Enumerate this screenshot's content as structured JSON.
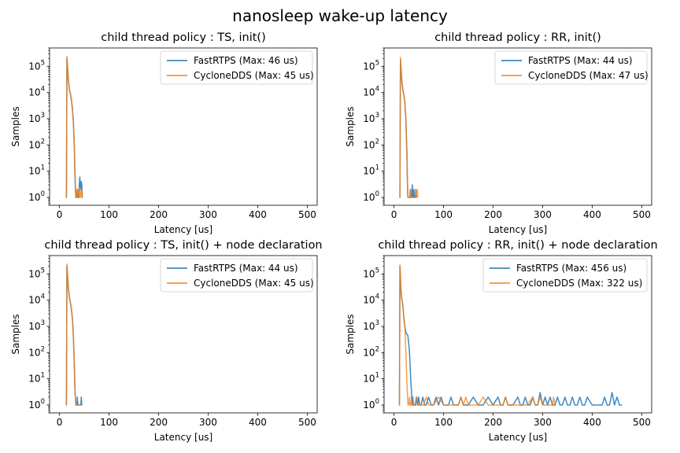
{
  "figure": {
    "suptitle": "nanosleep wake-up latency"
  },
  "colors": {
    "FastRTPS": "#1f77b4",
    "CycloneDDS": "#ff7f0e"
  },
  "chart_data": [
    {
      "type": "line",
      "title": "child thread policy : TS, init()",
      "xlabel": "Latency [us]",
      "ylabel": "Samples",
      "xlim": [
        -20,
        520
      ],
      "ylim": [
        0.5,
        500000
      ],
      "yscale": "log",
      "xticks": [
        0,
        100,
        200,
        300,
        400,
        500
      ],
      "yticks": [
        {
          "exp": 0
        },
        {
          "exp": 1
        },
        {
          "exp": 2
        },
        {
          "exp": 3
        },
        {
          "exp": 4
        },
        {
          "exp": 5
        }
      ],
      "legend": "top-right",
      "series": [
        {
          "name": "FastRTPS (Max: 46 us)",
          "x": [
            13,
            14,
            15,
            16,
            18,
            20,
            22,
            24,
            26,
            28,
            30,
            31,
            32,
            33,
            34,
            35,
            36,
            37,
            38,
            39,
            40,
            41,
            42,
            43,
            44,
            45,
            46,
            47
          ],
          "y": [
            1,
            1,
            200000,
            110000,
            30000,
            12000,
            9000,
            5000,
            2500,
            700,
            80,
            10,
            2,
            1,
            1,
            1,
            2,
            1,
            1,
            1,
            3,
            6,
            3,
            2,
            4,
            3,
            1,
            1
          ]
        },
        {
          "name": "CycloneDDS (Max: 45 us)",
          "x": [
            13,
            14,
            15,
            16,
            18,
            20,
            22,
            24,
            26,
            28,
            30,
            31,
            32,
            33,
            34,
            35,
            36,
            37,
            38,
            39,
            40,
            41,
            42,
            43,
            44,
            45,
            46
          ],
          "y": [
            1,
            1,
            240000,
            120000,
            32000,
            13000,
            9500,
            5200,
            2800,
            800,
            100,
            12,
            3,
            1,
            1,
            2,
            1,
            2,
            2,
            1,
            1,
            2,
            1,
            1,
            2,
            2,
            1
          ]
        }
      ]
    },
    {
      "type": "line",
      "title": "child thread policy : RR, init()",
      "xlabel": "Latency [us]",
      "ylabel": "Samples",
      "xlim": [
        -20,
        520
      ],
      "ylim": [
        0.5,
        500000
      ],
      "yscale": "log",
      "xticks": [
        0,
        100,
        200,
        300,
        400,
        500
      ],
      "yticks": [
        {
          "exp": 0
        },
        {
          "exp": 1
        },
        {
          "exp": 2
        },
        {
          "exp": 3
        },
        {
          "exp": 4
        },
        {
          "exp": 5
        }
      ],
      "legend": "top-right",
      "series": [
        {
          "name": "FastRTPS (Max: 44 us)",
          "x": [
            11,
            12,
            13,
            14,
            16,
            18,
            20,
            22,
            24,
            26,
            27,
            28,
            29,
            30,
            31,
            32,
            33,
            34,
            35,
            36,
            37,
            38,
            39,
            40,
            41,
            42,
            43,
            44,
            45
          ],
          "y": [
            1,
            1,
            180000,
            90000,
            25000,
            12000,
            8000,
            4000,
            900,
            50,
            5,
            1,
            1,
            1,
            1,
            1,
            2,
            1,
            1,
            1,
            3,
            1,
            1,
            2,
            1,
            1,
            1,
            2,
            1
          ]
        },
        {
          "name": "CycloneDDS (Max: 47 us)",
          "x": [
            11,
            12,
            13,
            14,
            16,
            18,
            20,
            22,
            24,
            26,
            27,
            28,
            29,
            30,
            31,
            32,
            33,
            34,
            35,
            36,
            37,
            38,
            39,
            40,
            41,
            42,
            43,
            44,
            45,
            46,
            47,
            48
          ],
          "y": [
            1,
            1,
            220000,
            100000,
            28000,
            13000,
            8500,
            4200,
            1000,
            60,
            6,
            1,
            1,
            1,
            1,
            1,
            1,
            2,
            1,
            1,
            1,
            1,
            1,
            1,
            1,
            1,
            1,
            2,
            1,
            1,
            2,
            1
          ]
        }
      ]
    },
    {
      "type": "line",
      "title": "child thread policy : TS, init() + node declaration",
      "xlabel": "Latency [us]",
      "ylabel": "Samples",
      "xlim": [
        -20,
        520
      ],
      "ylim": [
        0.5,
        500000
      ],
      "yscale": "log",
      "xticks": [
        0,
        100,
        200,
        300,
        400,
        500
      ],
      "yticks": [
        {
          "exp": 0
        },
        {
          "exp": 1
        },
        {
          "exp": 2
        },
        {
          "exp": 3
        },
        {
          "exp": 4
        },
        {
          "exp": 5
        }
      ],
      "legend": "top-right",
      "series": [
        {
          "name": "FastRTPS (Max: 44 us)",
          "x": [
            13,
            14,
            15,
            16,
            18,
            20,
            22,
            24,
            26,
            28,
            30,
            31,
            32,
            33,
            34,
            35,
            36,
            37,
            38,
            39,
            40,
            41,
            42,
            43,
            44,
            45
          ],
          "y": [
            1,
            1,
            200000,
            100000,
            28000,
            12000,
            8000,
            4500,
            2000,
            400,
            30,
            5,
            2,
            1,
            1,
            1,
            2,
            1,
            1,
            1,
            1,
            1,
            1,
            1,
            2,
            1
          ]
        },
        {
          "name": "CycloneDDS (Max: 45 us)",
          "x": [
            13,
            14,
            15,
            16,
            18,
            20,
            22,
            24,
            26,
            28,
            30,
            31,
            32,
            33,
            34,
            35,
            36,
            37,
            38,
            39,
            40,
            41,
            42,
            43,
            44,
            45,
            46
          ],
          "y": [
            1,
            1,
            240000,
            120000,
            30000,
            13000,
            8500,
            4800,
            2200,
            450,
            35,
            6,
            2,
            1,
            1,
            1,
            1,
            1,
            1,
            1,
            1,
            1,
            1,
            1,
            1,
            1,
            1
          ]
        }
      ]
    },
    {
      "type": "line",
      "title": "child thread policy : RR, init() + node declaration",
      "xlabel": "Latency [us]",
      "ylabel": "Samples",
      "xlim": [
        -20,
        520
      ],
      "ylim": [
        0.5,
        500000
      ],
      "yscale": "log",
      "xticks": [
        0,
        100,
        200,
        300,
        400,
        500
      ],
      "yticks": [
        {
          "exp": 0
        },
        {
          "exp": 1
        },
        {
          "exp": 2
        },
        {
          "exp": 3
        },
        {
          "exp": 4
        },
        {
          "exp": 5
        }
      ],
      "legend": "top-right",
      "series": [
        {
          "name": "FastRTPS (Max: 456 us)",
          "x": [
            10,
            11,
            12,
            13,
            14,
            16,
            18,
            20,
            22,
            24,
            26,
            28,
            30,
            31,
            32,
            33,
            34,
            35,
            36,
            37,
            38,
            39,
            40,
            42,
            44,
            46,
            48,
            50,
            52,
            55,
            58,
            62,
            65,
            70,
            75,
            80,
            85,
            90,
            95,
            100,
            105,
            110,
            115,
            120,
            125,
            130,
            135,
            140,
            150,
            160,
            170,
            180,
            190,
            200,
            210,
            215,
            220,
            225,
            230,
            240,
            250,
            255,
            260,
            265,
            270,
            275,
            280,
            285,
            290,
            295,
            300,
            305,
            310,
            315,
            320,
            325,
            330,
            335,
            340,
            345,
            350,
            355,
            360,
            365,
            370,
            375,
            380,
            385,
            390,
            400,
            410,
            420,
            425,
            430,
            435,
            440,
            445,
            450,
            455,
            456,
            460
          ],
          "y": [
            1,
            1,
            200000,
            80000,
            25000,
            10000,
            6000,
            2000,
            1000,
            600,
            500,
            450,
            200,
            120,
            60,
            20,
            8,
            4,
            2,
            1,
            2,
            1,
            1,
            1,
            1,
            2,
            1,
            2,
            1,
            1,
            2,
            1,
            1,
            2,
            1,
            1,
            2,
            1,
            2,
            1,
            1,
            1,
            2,
            1,
            1,
            1,
            2,
            1,
            1,
            2,
            1,
            1,
            2,
            1,
            2,
            1,
            1,
            2,
            1,
            1,
            2,
            1,
            1,
            2,
            1,
            1,
            2,
            1,
            1,
            3,
            1,
            2,
            1,
            2,
            1,
            1,
            2,
            1,
            1,
            2,
            1,
            1,
            2,
            1,
            1,
            2,
            1,
            1,
            2,
            1,
            1,
            1,
            2,
            1,
            1,
            3,
            1,
            2,
            1,
            1,
            1
          ]
        },
        {
          "name": "CycloneDDS (Max: 322 us)",
          "x": [
            10,
            11,
            12,
            13,
            14,
            16,
            18,
            20,
            22,
            24,
            26,
            27,
            28,
            29,
            30,
            31,
            32,
            33,
            34,
            35,
            36,
            38,
            40,
            42,
            45,
            50,
            55,
            60,
            65,
            70,
            75,
            80,
            90,
            100,
            110,
            120,
            130,
            135,
            140,
            145,
            150,
            155,
            160,
            170,
            180,
            190,
            200,
            210,
            220,
            225,
            230,
            240,
            250,
            260,
            270,
            280,
            285,
            290,
            295,
            300,
            310,
            320,
            322,
            325
          ],
          "y": [
            1,
            1,
            220000,
            90000,
            28000,
            11000,
            6500,
            2200,
            900,
            100,
            8,
            3,
            1,
            1,
            1,
            2,
            1,
            1,
            1,
            2,
            1,
            1,
            1,
            1,
            2,
            1,
            1,
            1,
            2,
            1,
            1,
            1,
            2,
            1,
            1,
            1,
            1,
            2,
            1,
            2,
            1,
            1,
            1,
            1,
            2,
            1,
            1,
            1,
            1,
            2,
            1,
            1,
            1,
            1,
            1,
            2,
            1,
            1,
            2,
            1,
            1,
            1,
            2,
            1
          ]
        }
      ]
    }
  ]
}
